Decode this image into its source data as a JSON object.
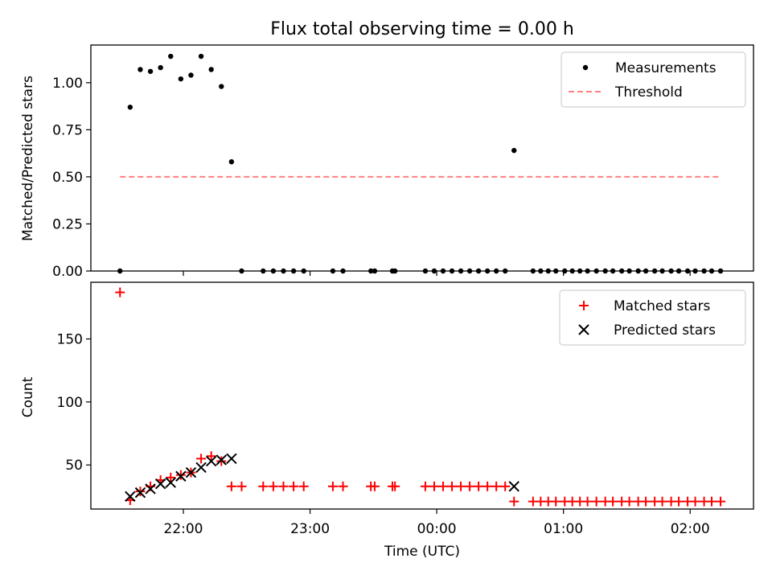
{
  "chart_data": [
    {
      "type": "scatter",
      "title": "Flux total observing time = 0.00 h",
      "xlabel": "",
      "ylabel": "Matched/Predicted stars",
      "ylim": [
        0.0,
        1.2
      ],
      "yticks": [
        0.0,
        0.25,
        0.5,
        0.75,
        1.0
      ],
      "ytick_labels": [
        "0.00",
        "0.25",
        "0.50",
        "0.75",
        "1.00"
      ],
      "xlim_hours": [
        21.27,
        26.5
      ],
      "x_unit": "hours since 00:00 UTC of the first night (24 = 00:00 next day)",
      "legend_position": "upper right",
      "series": [
        {
          "name": "Measurements",
          "marker": "dot",
          "color": "#000000",
          "x": [
            21.5,
            21.58,
            21.66,
            21.74,
            21.82,
            21.9,
            21.98,
            22.06,
            22.14,
            22.22,
            22.3,
            22.38,
            22.46,
            22.63,
            22.71,
            22.79,
            22.87,
            22.95,
            23.18,
            23.26,
            23.48,
            23.51,
            23.65,
            23.67,
            23.91,
            23.98,
            24.05,
            24.12,
            24.19,
            24.26,
            24.33,
            24.4,
            24.47,
            24.54,
            24.61,
            24.76,
            24.82,
            24.88,
            24.94,
            25.01,
            25.07,
            25.13,
            25.19,
            25.26,
            25.33,
            25.39,
            25.46,
            25.52,
            25.59,
            25.65,
            25.72,
            25.78,
            25.85,
            25.91,
            25.98,
            26.04,
            26.11,
            26.17,
            26.24
          ],
          "y": [
            0.0,
            0.87,
            1.07,
            1.06,
            1.08,
            1.14,
            1.02,
            1.04,
            1.14,
            1.07,
            0.98,
            0.58,
            0.0,
            0.0,
            0.0,
            0.0,
            0.0,
            0.0,
            0.0,
            0.0,
            0.0,
            0.0,
            0.0,
            0.0,
            0.0,
            0.0,
            0.0,
            0.0,
            0.0,
            0.0,
            0.0,
            0.0,
            0.0,
            0.0,
            0.64,
            0.0,
            0.0,
            0.0,
            0.0,
            0.0,
            0.0,
            0.0,
            0.0,
            0.0,
            0.0,
            0.0,
            0.0,
            0.0,
            0.0,
            0.0,
            0.0,
            0.0,
            0.0,
            0.0,
            0.0,
            0.0,
            0.0,
            0.0,
            0.0
          ]
        },
        {
          "name": "Threshold",
          "style": "dashed-line",
          "color": "#ff7f7f",
          "x": [
            21.5,
            26.24
          ],
          "y": [
            0.5,
            0.5
          ]
        }
      ]
    },
    {
      "type": "scatter",
      "title": "",
      "xlabel": "Time (UTC)",
      "ylabel": "Count",
      "ylim": [
        15,
        195
      ],
      "yticks": [
        50,
        100,
        150
      ],
      "ytick_labels": [
        "50",
        "100",
        "150"
      ],
      "xlim_hours": [
        21.27,
        26.5
      ],
      "xticks_hours": [
        22,
        23,
        24,
        25,
        26
      ],
      "xtick_labels": [
        "22:00",
        "23:00",
        "00:00",
        "01:00",
        "02:00"
      ],
      "legend_position": "upper right",
      "series": [
        {
          "name": "Matched stars",
          "marker": "plus",
          "color": "#ff0000",
          "x": [
            21.5,
            21.58,
            21.66,
            21.74,
            21.82,
            21.9,
            21.98,
            22.06,
            22.14,
            22.22,
            22.3,
            22.38,
            22.46,
            22.63,
            22.71,
            22.79,
            22.87,
            22.95,
            23.18,
            23.26,
            23.48,
            23.51,
            23.65,
            23.67,
            23.91,
            23.98,
            24.05,
            24.12,
            24.19,
            24.26,
            24.33,
            24.4,
            24.47,
            24.54,
            24.61,
            24.76,
            24.82,
            24.88,
            24.94,
            25.01,
            25.07,
            25.13,
            25.19,
            25.26,
            25.33,
            25.39,
            25.46,
            25.52,
            25.59,
            25.65,
            25.72,
            25.78,
            25.85,
            25.91,
            25.98,
            26.04,
            26.11,
            26.17,
            26.24
          ],
          "y": [
            187,
            22,
            29,
            33,
            38,
            40,
            42,
            44,
            55,
            57,
            53,
            33,
            33,
            33,
            33,
            33,
            33,
            33,
            33,
            33,
            33,
            33,
            33,
            33,
            33,
            33,
            33,
            33,
            33,
            33,
            33,
            33,
            33,
            33,
            21,
            21,
            21,
            21,
            21,
            21,
            21,
            21,
            21,
            21,
            21,
            21,
            21,
            21,
            21,
            21,
            21,
            21,
            21,
            21,
            21,
            21,
            21,
            21,
            21
          ]
        },
        {
          "name": "Predicted stars",
          "marker": "x",
          "color": "#000000",
          "x": [
            21.58,
            21.66,
            21.74,
            21.82,
            21.9,
            21.98,
            22.06,
            22.14,
            22.22,
            22.3,
            22.38,
            24.61
          ],
          "y": [
            25,
            28,
            31,
            35,
            36,
            41,
            44,
            48,
            53,
            54,
            55,
            33
          ]
        }
      ]
    }
  ]
}
